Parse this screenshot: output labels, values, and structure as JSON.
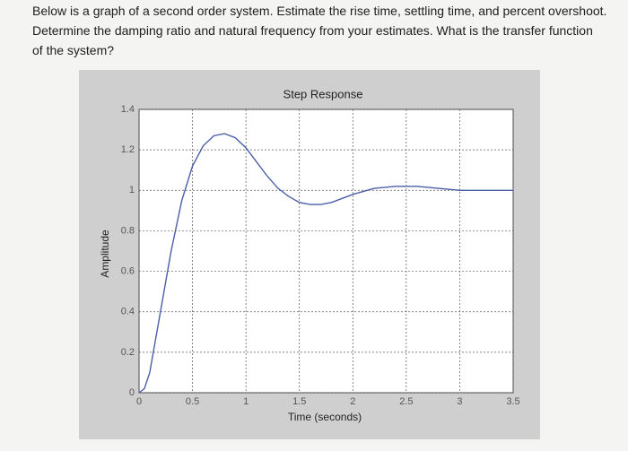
{
  "question": {
    "lines": [
      "Below is a graph of a second order system.  Estimate the rise time, settling time, and percent overshoot.",
      "Determine the damping ratio and natural frequency from your estimates.  What is the transfer function",
      "of the system?"
    ]
  },
  "chart_data": {
    "type": "line",
    "title": "Step Response",
    "x_label": "Time (seconds)",
    "y_label": "Amplitude",
    "x": [
      0,
      0.05,
      0.1,
      0.2,
      0.3,
      0.4,
      0.5,
      0.6,
      0.7,
      0.8,
      0.9,
      1.0,
      1.1,
      1.2,
      1.3,
      1.4,
      1.5,
      1.6,
      1.7,
      1.8,
      1.9,
      2.0,
      2.2,
      2.4,
      2.6,
      2.8,
      3.0,
      3.2,
      3.5
    ],
    "values": [
      0,
      0.02,
      0.1,
      0.4,
      0.7,
      0.95,
      1.12,
      1.22,
      1.27,
      1.28,
      1.26,
      1.21,
      1.14,
      1.07,
      1.01,
      0.97,
      0.94,
      0.93,
      0.93,
      0.94,
      0.96,
      0.98,
      1.01,
      1.02,
      1.02,
      1.01,
      1.0,
      1.0,
      1.0
    ],
    "color": "#4a5fa8",
    "xlim": [
      0,
      3.5
    ],
    "xticks": [
      0,
      0.5,
      1,
      1.5,
      2,
      2.5,
      3,
      3.5
    ],
    "ylim": [
      0,
      1.4
    ],
    "yticks": [
      0,
      0.2,
      0.4,
      0.6,
      0.8,
      1,
      1.2,
      1.4
    ],
    "grid": true
  }
}
